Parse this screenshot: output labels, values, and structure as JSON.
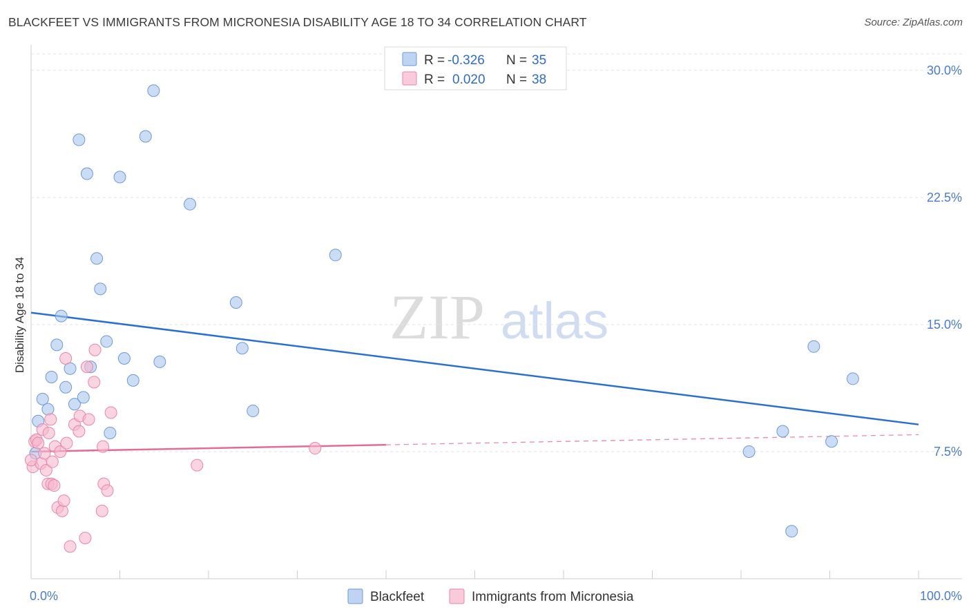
{
  "title": "BLACKFEET VS IMMIGRANTS FROM MICRONESIA DISABILITY AGE 18 TO 34 CORRELATION CHART",
  "source": "Source: ZipAtlas.com",
  "watermark": {
    "zip": "ZIP",
    "atlas": "atlas"
  },
  "chart_data": {
    "type": "scatter",
    "ylabel": "Disability Age 18 to 34",
    "xlabel": "",
    "xlim": [
      0,
      100
    ],
    "ylim": [
      0,
      31.5
    ],
    "x_tick_labels": [
      "0.0%",
      "100.0%"
    ],
    "y_ticks": [
      7.5,
      15.0,
      22.5,
      30.0
    ],
    "y_tick_labels": [
      "7.5%",
      "15.0%",
      "22.5%",
      "30.0%"
    ],
    "grid": "horizontal dashed",
    "legend_position": "top-center",
    "legend": [
      {
        "r_label": "R =",
        "r_value": "-0.326",
        "n_label": "N =",
        "n_value": "35"
      },
      {
        "r_label": "R =",
        "r_value": "0.020",
        "n_label": "N =",
        "n_value": "38"
      }
    ],
    "series": [
      {
        "name": "Blackfeet",
        "color": "#a9c6ef",
        "stroke": "#6f98d8",
        "trend_color": "#2b6fcf",
        "trend": {
          "x0": 0,
          "y0": 15.7,
          "x1": 100,
          "y1": 9.1
        },
        "points": [
          [
            0.5,
            7.4
          ],
          [
            0.8,
            9.3
          ],
          [
            1.3,
            10.6
          ],
          [
            1.9,
            10.0
          ],
          [
            2.3,
            11.9
          ],
          [
            2.9,
            13.8
          ],
          [
            3.4,
            15.5
          ],
          [
            3.9,
            11.3
          ],
          [
            4.4,
            12.4
          ],
          [
            4.9,
            10.3
          ],
          [
            5.4,
            25.9
          ],
          [
            5.9,
            10.7
          ],
          [
            6.3,
            23.9
          ],
          [
            6.7,
            12.5
          ],
          [
            7.4,
            18.9
          ],
          [
            7.8,
            17.1
          ],
          [
            8.5,
            14.0
          ],
          [
            8.9,
            8.6
          ],
          [
            10.0,
            23.7
          ],
          [
            10.5,
            13.0
          ],
          [
            11.5,
            11.7
          ],
          [
            12.9,
            26.1
          ],
          [
            13.8,
            28.8
          ],
          [
            14.5,
            12.8
          ],
          [
            17.9,
            22.1
          ],
          [
            23.1,
            16.3
          ],
          [
            23.8,
            13.6
          ],
          [
            25.0,
            9.9
          ],
          [
            34.3,
            19.1
          ],
          [
            80.9,
            7.5
          ],
          [
            84.7,
            8.7
          ],
          [
            85.7,
            2.8
          ],
          [
            88.2,
            13.7
          ],
          [
            90.2,
            8.1
          ],
          [
            92.6,
            11.8
          ]
        ]
      },
      {
        "name": "Immigrants from Micronesia",
        "color": "#f7b8cd",
        "stroke": "#e886a7",
        "trend_color": "#e46b95",
        "trend": {
          "x0": 0,
          "y0": 7.5,
          "x1": 40,
          "y1": 7.9
        },
        "trend_dashed": {
          "x0": 40,
          "y0": 7.9,
          "x1": 100,
          "y1": 8.5
        },
        "points": [
          [
            0.2,
            6.6
          ],
          [
            0.4,
            8.1
          ],
          [
            0.6,
            8.2
          ],
          [
            0.8,
            8.0
          ],
          [
            1.1,
            6.8
          ],
          [
            1.3,
            8.8
          ],
          [
            1.5,
            7.4
          ],
          [
            1.7,
            6.4
          ],
          [
            1.9,
            5.6
          ],
          [
            2.0,
            8.6
          ],
          [
            2.2,
            9.4
          ],
          [
            2.3,
            5.6
          ],
          [
            2.4,
            6.9
          ],
          [
            2.6,
            5.5
          ],
          [
            2.7,
            7.8
          ],
          [
            3.0,
            4.2
          ],
          [
            3.3,
            7.5
          ],
          [
            3.5,
            4.0
          ],
          [
            3.7,
            4.6
          ],
          [
            3.9,
            13.0
          ],
          [
            4.0,
            8.0
          ],
          [
            4.4,
            1.9
          ],
          [
            4.9,
            9.1
          ],
          [
            5.4,
            8.7
          ],
          [
            5.5,
            9.6
          ],
          [
            6.1,
            2.4
          ],
          [
            6.3,
            12.5
          ],
          [
            6.5,
            9.4
          ],
          [
            7.1,
            11.6
          ],
          [
            7.2,
            13.5
          ],
          [
            8.0,
            4.0
          ],
          [
            8.1,
            7.8
          ],
          [
            8.2,
            5.6
          ],
          [
            8.6,
            5.2
          ],
          [
            9.0,
            9.8
          ],
          [
            18.7,
            6.7
          ],
          [
            32.0,
            7.7
          ],
          [
            0.0,
            7.0
          ]
        ]
      }
    ]
  }
}
